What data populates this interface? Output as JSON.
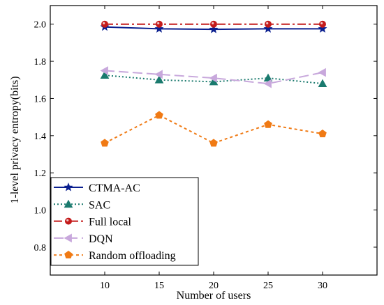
{
  "chart_data": {
    "type": "line",
    "title": "",
    "xlabel": "Number of users",
    "ylabel": "1-level privacy entropy(bits)",
    "x": [
      10,
      15,
      20,
      25,
      30
    ],
    "xlim": [
      5,
      35
    ],
    "ylim": [
      0.65,
      2.1
    ],
    "xticks": [
      "10",
      "15",
      "20",
      "25",
      "30"
    ],
    "yticks": [
      "0.8",
      "1.0",
      "1.2",
      "1.4",
      "1.6",
      "1.8",
      "2.0"
    ],
    "legend_position": "bottom-left",
    "series": [
      {
        "name": "CTMA-AC",
        "values": [
          1.985,
          1.975,
          1.972,
          1.975,
          1.975
        ],
        "color": "#0a1f8f",
        "dash": "",
        "marker": "star"
      },
      {
        "name": "SAC",
        "values": [
          1.725,
          1.7,
          1.69,
          1.71,
          1.68
        ],
        "color": "#1a7a6e",
        "dash": "2,3",
        "marker": "triangle"
      },
      {
        "name": "Full local",
        "values": [
          2.0,
          2.0,
          2.0,
          2.0,
          2.0
        ],
        "color": "#c41b1b",
        "dash": "12,4,3,4",
        "marker": "circle"
      },
      {
        "name": "DQN",
        "values": [
          1.75,
          1.73,
          1.71,
          1.68,
          1.74
        ],
        "color": "#c8a8dc",
        "dash": "14,6",
        "marker": "triangle-left"
      },
      {
        "name": "Random offloading",
        "values": [
          1.36,
          1.51,
          1.36,
          1.46,
          1.41
        ],
        "color": "#f07a14",
        "dash": "4,4",
        "marker": "pentagon"
      }
    ]
  }
}
